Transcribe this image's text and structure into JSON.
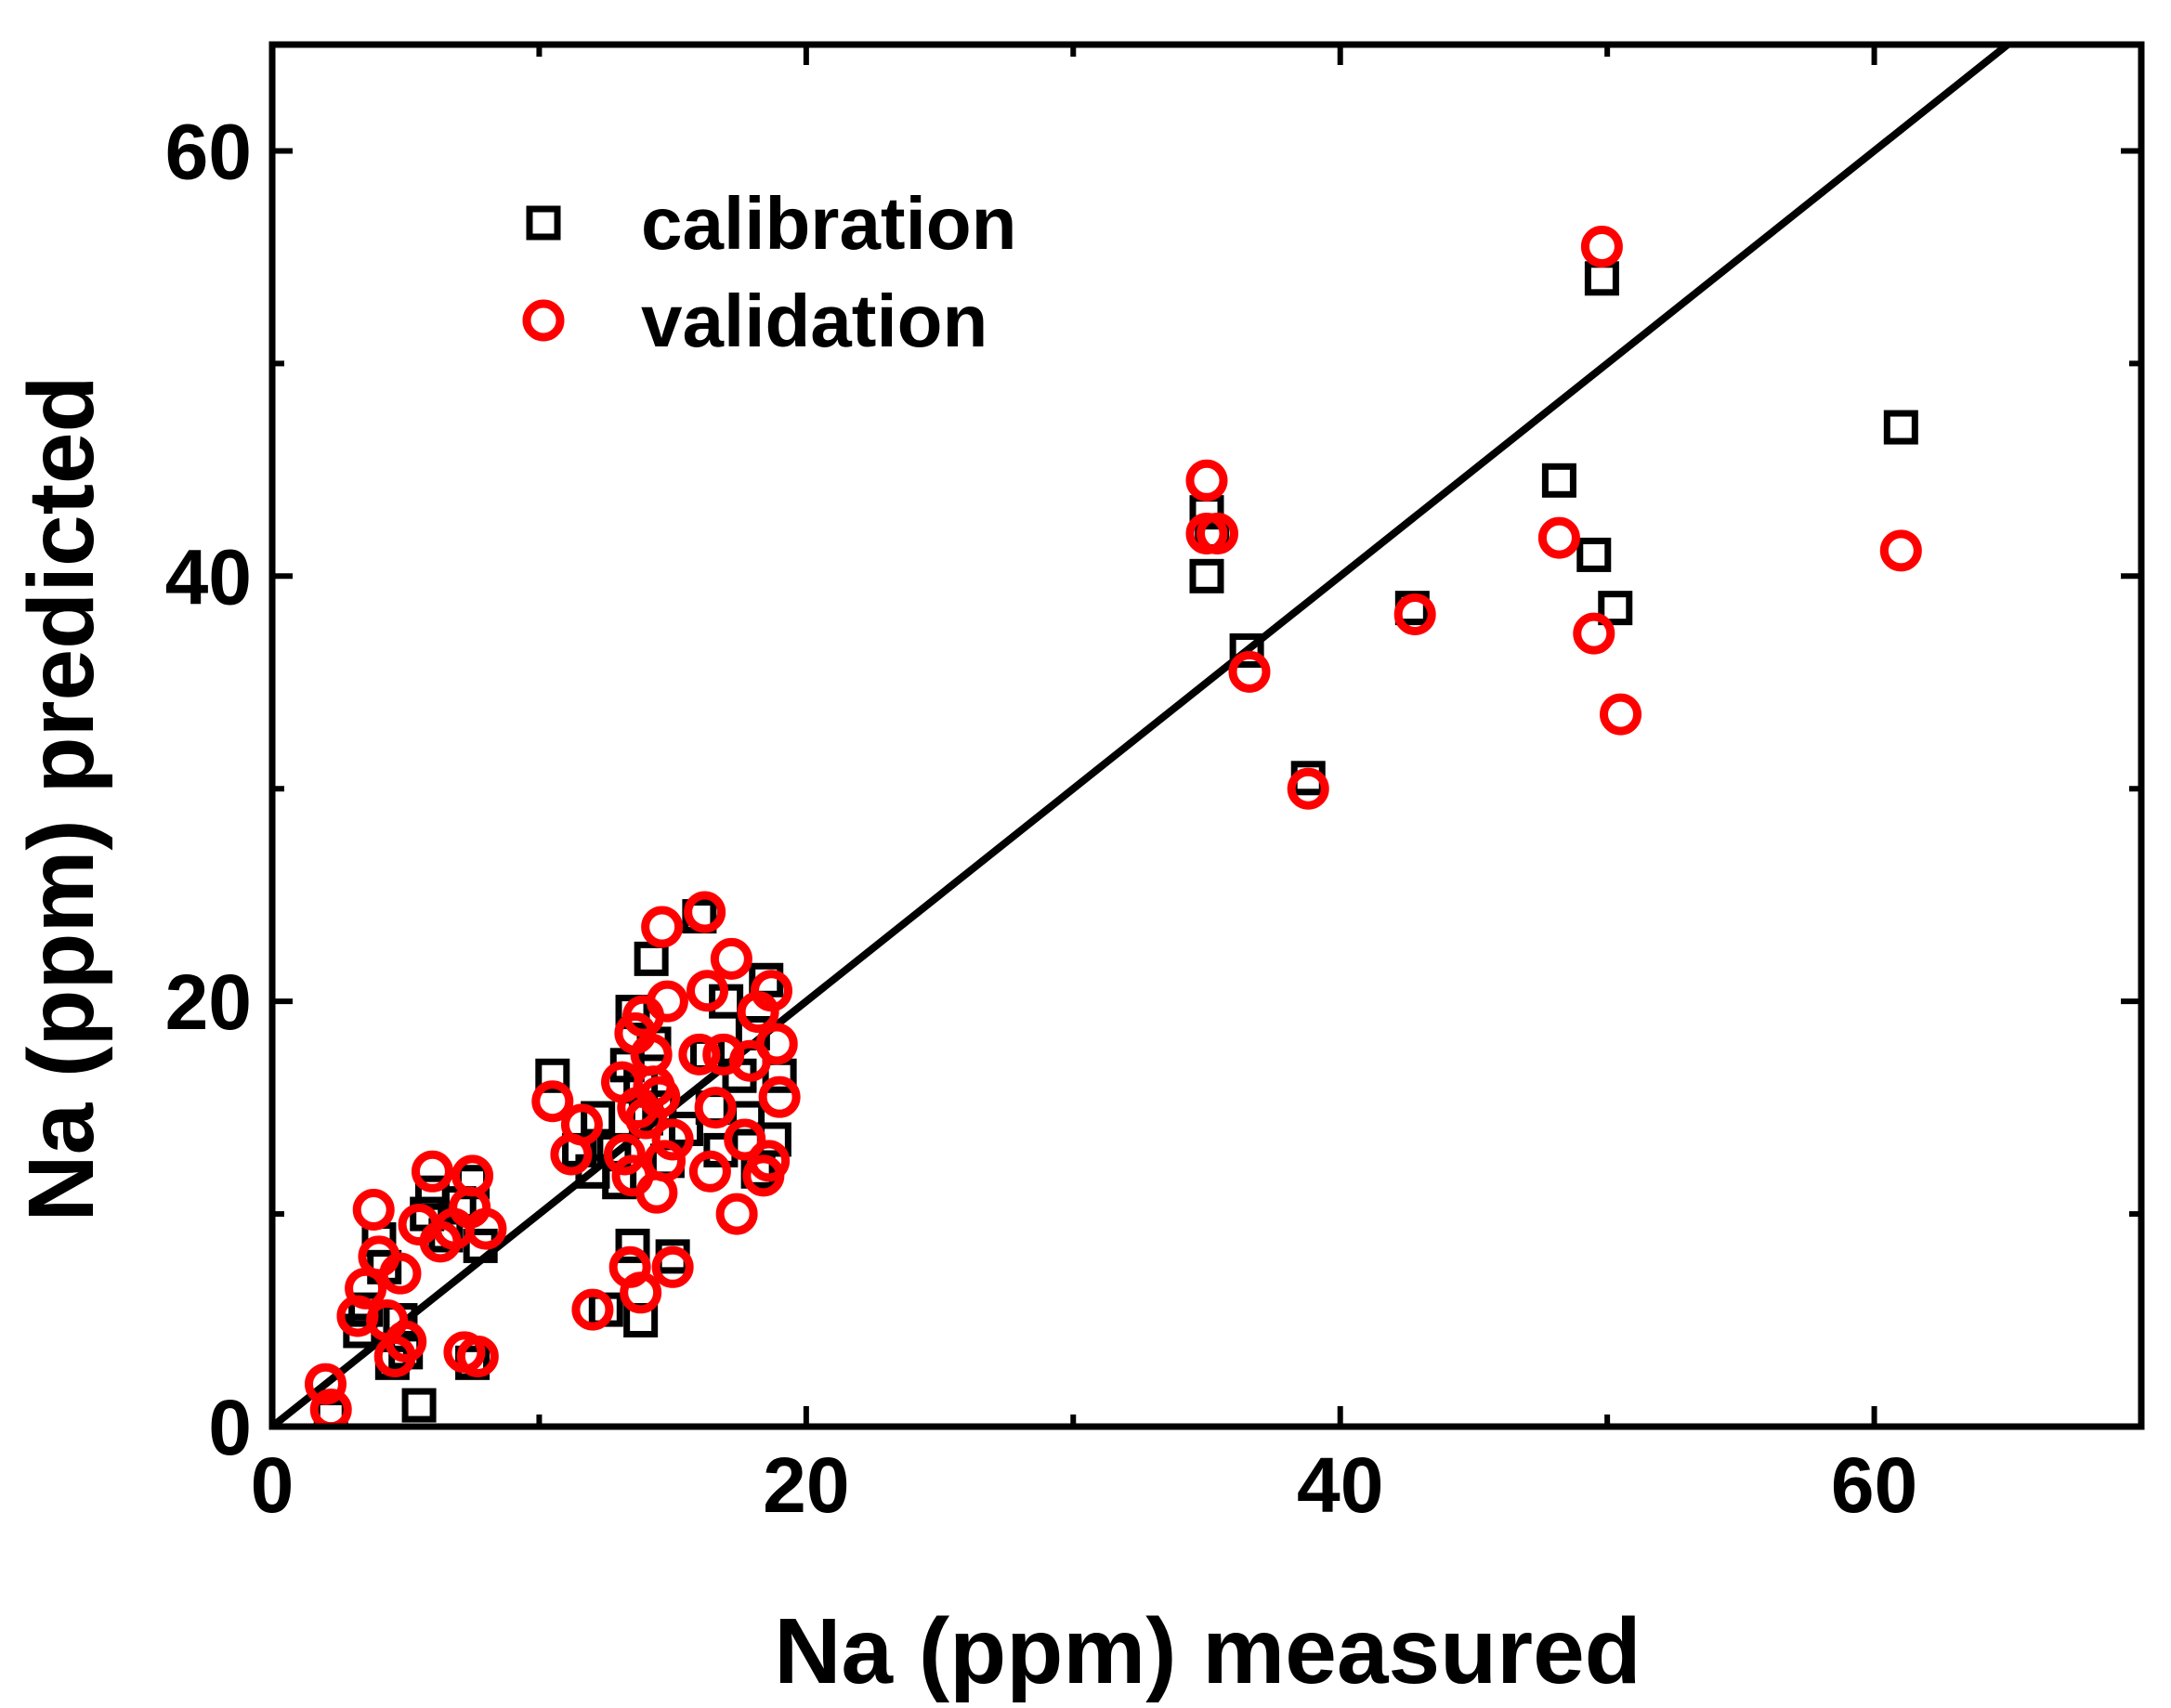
{
  "chart_data": {
    "type": "scatter",
    "title": "",
    "xlabel": "Na (ppm) measured",
    "ylabel": "Na (ppm) predicted",
    "xlim": [
      0,
      70
    ],
    "ylim": [
      0,
      65
    ],
    "x_ticks": [
      0,
      20,
      40,
      60
    ],
    "y_ticks": [
      0,
      20,
      40,
      60
    ],
    "x_tick_labels": [
      "0",
      "20",
      "40",
      "60"
    ],
    "y_tick_labels": [
      "0",
      "20",
      "40",
      "60"
    ],
    "grid": false,
    "legend": {
      "position": "top-left"
    },
    "colors": {
      "calibration": "#000000",
      "validation": "#ff0000",
      "line": "#000000"
    },
    "reference_line": {
      "x": [
        0,
        65
      ],
      "y": [
        0,
        65
      ]
    },
    "series": [
      {
        "name": "calibration",
        "marker": "square",
        "points": [
          [
            2.2,
            0.5
          ],
          [
            3.3,
            4.5
          ],
          [
            3.5,
            5.5
          ],
          [
            4.0,
            8.8
          ],
          [
            4.2,
            7.5
          ],
          [
            4.5,
            3.0
          ],
          [
            4.8,
            5.0
          ],
          [
            5.0,
            3.5
          ],
          [
            5.5,
            1.0
          ],
          [
            5.8,
            10.0
          ],
          [
            6.0,
            11.0
          ],
          [
            6.5,
            9.0
          ],
          [
            7.0,
            10.5
          ],
          [
            7.5,
            11.5
          ],
          [
            7.5,
            3.0
          ],
          [
            7.8,
            8.5
          ],
          [
            10.5,
            16.5
          ],
          [
            11.5,
            13.0
          ],
          [
            12.0,
            12.0
          ],
          [
            12.2,
            14.5
          ],
          [
            12.5,
            5.5
          ],
          [
            12.8,
            13.0
          ],
          [
            13.0,
            11.5
          ],
          [
            13.3,
            17.0
          ],
          [
            13.5,
            19.5
          ],
          [
            13.5,
            8.5
          ],
          [
            13.8,
            16.0
          ],
          [
            13.8,
            5.0
          ],
          [
            14.0,
            14.5
          ],
          [
            14.2,
            22.0
          ],
          [
            14.3,
            18.0
          ],
          [
            14.5,
            15.0
          ],
          [
            14.8,
            12.5
          ],
          [
            15.0,
            8.0
          ],
          [
            15.5,
            14.0
          ],
          [
            16.0,
            24.0
          ],
          [
            16.3,
            17.5
          ],
          [
            16.5,
            15.0
          ],
          [
            16.8,
            13.0
          ],
          [
            17.0,
            20.0
          ],
          [
            17.5,
            16.5
          ],
          [
            17.8,
            14.5
          ],
          [
            18.0,
            18.5
          ],
          [
            18.2,
            12.0
          ],
          [
            18.5,
            21.0
          ],
          [
            18.8,
            13.5
          ],
          [
            19.0,
            16.5
          ],
          [
            35.0,
            43.0
          ],
          [
            35.0,
            40.0
          ],
          [
            35.2,
            42.0
          ],
          [
            36.5,
            36.5
          ],
          [
            38.8,
            30.5
          ],
          [
            42.7,
            38.5
          ],
          [
            48.2,
            44.5
          ],
          [
            49.5,
            41.0
          ],
          [
            49.8,
            54.0
          ],
          [
            50.3,
            38.5
          ],
          [
            61.0,
            47.0
          ]
        ]
      },
      {
        "name": "validation",
        "marker": "circle",
        "points": [
          [
            2.0,
            2.0
          ],
          [
            2.2,
            0.8
          ],
          [
            3.2,
            5.2
          ],
          [
            3.5,
            6.5
          ],
          [
            3.8,
            10.2
          ],
          [
            4.0,
            8.0
          ],
          [
            4.3,
            5.0
          ],
          [
            4.6,
            3.3
          ],
          [
            4.8,
            7.2
          ],
          [
            5.0,
            4.0
          ],
          [
            5.5,
            9.5
          ],
          [
            6.0,
            12.0
          ],
          [
            6.3,
            8.7
          ],
          [
            6.8,
            9.3
          ],
          [
            7.2,
            3.5
          ],
          [
            7.4,
            10.3
          ],
          [
            7.5,
            11.8
          ],
          [
            7.7,
            3.3
          ],
          [
            8.0,
            9.3
          ],
          [
            10.5,
            15.3
          ],
          [
            11.2,
            12.8
          ],
          [
            11.6,
            14.2
          ],
          [
            12.0,
            5.5
          ],
          [
            13.1,
            16.2
          ],
          [
            13.2,
            12.8
          ],
          [
            13.4,
            7.5
          ],
          [
            13.5,
            11.8
          ],
          [
            13.6,
            18.5
          ],
          [
            13.7,
            15.0
          ],
          [
            13.8,
            6.3
          ],
          [
            13.9,
            19.3
          ],
          [
            14.0,
            14.5
          ],
          [
            14.2,
            17.5
          ],
          [
            14.3,
            16.0
          ],
          [
            14.4,
            11.0
          ],
          [
            14.5,
            15.5
          ],
          [
            14.6,
            23.5
          ],
          [
            14.7,
            12.5
          ],
          [
            14.8,
            20.0
          ],
          [
            15.0,
            13.5
          ],
          [
            15.0,
            7.5
          ],
          [
            16.0,
            17.5
          ],
          [
            16.2,
            24.2
          ],
          [
            16.3,
            20.5
          ],
          [
            16.4,
            12.0
          ],
          [
            16.6,
            15.0
          ],
          [
            16.9,
            17.5
          ],
          [
            17.2,
            22.0
          ],
          [
            17.4,
            10.0
          ],
          [
            17.7,
            13.5
          ],
          [
            17.9,
            17.2
          ],
          [
            18.2,
            19.5
          ],
          [
            18.4,
            11.8
          ],
          [
            18.6,
            12.5
          ],
          [
            18.7,
            20.5
          ],
          [
            18.9,
            18.0
          ],
          [
            19.0,
            15.5
          ],
          [
            35.0,
            44.5
          ],
          [
            35.0,
            42.0
          ],
          [
            35.4,
            42.0
          ],
          [
            36.6,
            35.5
          ],
          [
            38.8,
            30.0
          ],
          [
            42.8,
            38.2
          ],
          [
            48.2,
            41.8
          ],
          [
            49.5,
            37.3
          ],
          [
            49.8,
            55.5
          ],
          [
            50.5,
            33.5
          ],
          [
            61.0,
            41.2
          ]
        ]
      }
    ]
  }
}
